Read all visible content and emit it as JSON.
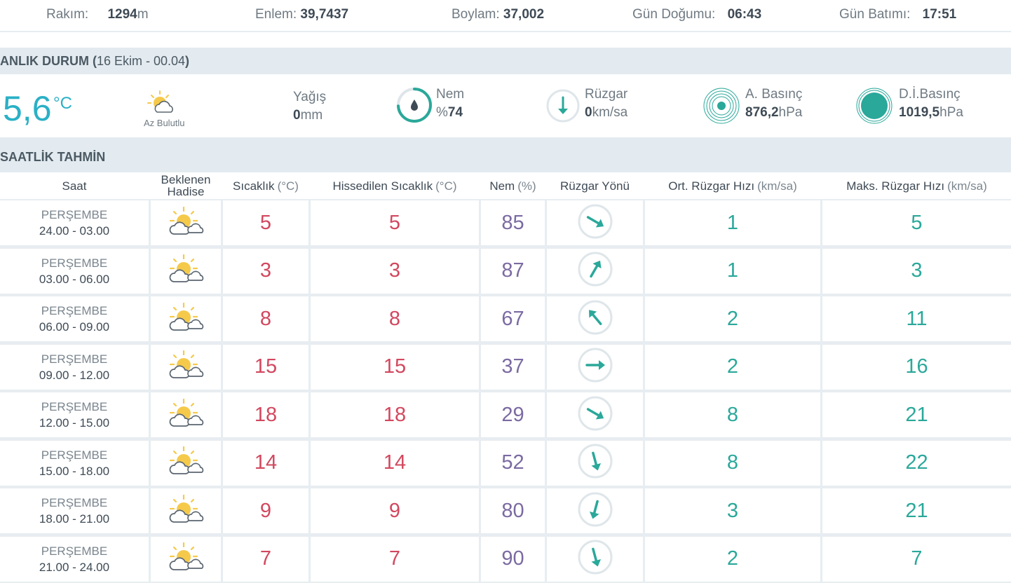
{
  "location": {
    "altitude_label": "Rakım:",
    "altitude_value": "1294",
    "altitude_unit": "m",
    "lat_label": "Enlem:",
    "lat_value": "39,7437",
    "lon_label": "Boylam:",
    "lon_value": "37,002",
    "sunrise_label": "Gün Doğumu:",
    "sunrise_value": "06:43",
    "sunset_label": "Gün Batımı:",
    "sunset_value": "17:51"
  },
  "current": {
    "title": "ANLIK DURUM (",
    "subtitle": "16 Ekim - 00.04",
    "title_close": ")",
    "temp": "5,6",
    "temp_unit": "°C",
    "condition": "Az Bulutlu",
    "condition_icon": "partly-cloudy-icon",
    "precip_label": "Yağış",
    "precip_value": "0",
    "precip_unit": "mm",
    "humidity_label": "Nem",
    "humidity_prefix": "%",
    "humidity_value": "74",
    "wind_label": "Rüzgar",
    "wind_value": "0",
    "wind_unit": "km/sa",
    "pressure_label": "A. Basınç",
    "pressure_value": "876,2",
    "pressure_unit": "hPa",
    "sealevel_label": "D.İ.Basınç",
    "sealevel_value": "1019,5",
    "sealevel_unit": "hPa"
  },
  "hourly": {
    "title": "SAATLİK TAHMİN",
    "headers": {
      "time": "Saat",
      "event_1": "Beklenen",
      "event_2": "Hadise",
      "temp": "Sıcaklık",
      "temp_unit": "(°C)",
      "feels": "Hissedilen Sıcaklık",
      "feels_unit": "(°C)",
      "humidity": "Nem",
      "humidity_unit": "(%)",
      "wind_dir": "Rüzgar Yönü",
      "avg_wind": "Ort. Rüzgar Hızı",
      "avg_wind_unit": "(km/sa)",
      "max_wind": "Maks. Rüzgar Hızı",
      "max_wind_unit": "(km/sa)"
    },
    "rows": [
      {
        "day": "PERŞEMBE",
        "span": "24.00 - 03.00",
        "temp": "5",
        "feels": "5",
        "humidity": "85",
        "wind_dir_deg": 120,
        "avg": "1",
        "max": "5"
      },
      {
        "day": "PERŞEMBE",
        "span": "03.00 - 06.00",
        "temp": "3",
        "feels": "3",
        "humidity": "87",
        "wind_dir_deg": 30,
        "avg": "1",
        "max": "3"
      },
      {
        "day": "PERŞEMBE",
        "span": "06.00 - 09.00",
        "temp": "8",
        "feels": "8",
        "humidity": "67",
        "wind_dir_deg": 320,
        "avg": "2",
        "max": "11"
      },
      {
        "day": "PERŞEMBE",
        "span": "09.00 - 12.00",
        "temp": "15",
        "feels": "15",
        "humidity": "37",
        "wind_dir_deg": 90,
        "avg": "2",
        "max": "16"
      },
      {
        "day": "PERŞEMBE",
        "span": "12.00 - 15.00",
        "temp": "18",
        "feels": "18",
        "humidity": "29",
        "wind_dir_deg": 120,
        "avg": "8",
        "max": "21"
      },
      {
        "day": "PERŞEMBE",
        "span": "15.00 - 18.00",
        "temp": "14",
        "feels": "14",
        "humidity": "52",
        "wind_dir_deg": 165,
        "avg": "8",
        "max": "22"
      },
      {
        "day": "PERŞEMBE",
        "span": "18.00 - 21.00",
        "temp": "9",
        "feels": "9",
        "humidity": "80",
        "wind_dir_deg": 195,
        "avg": "3",
        "max": "21"
      },
      {
        "day": "PERŞEMBE",
        "span": "21.00 - 24.00",
        "temp": "7",
        "feels": "7",
        "humidity": "90",
        "wind_dir_deg": 165,
        "avg": "2",
        "max": "7"
      }
    ]
  },
  "colors": {
    "accent": "#2ab0c6",
    "temp_red": "#d2485f",
    "humidity_purple": "#7b6aa2",
    "wind_teal": "#2aa89a",
    "header_bg": "#e3ebf0"
  }
}
